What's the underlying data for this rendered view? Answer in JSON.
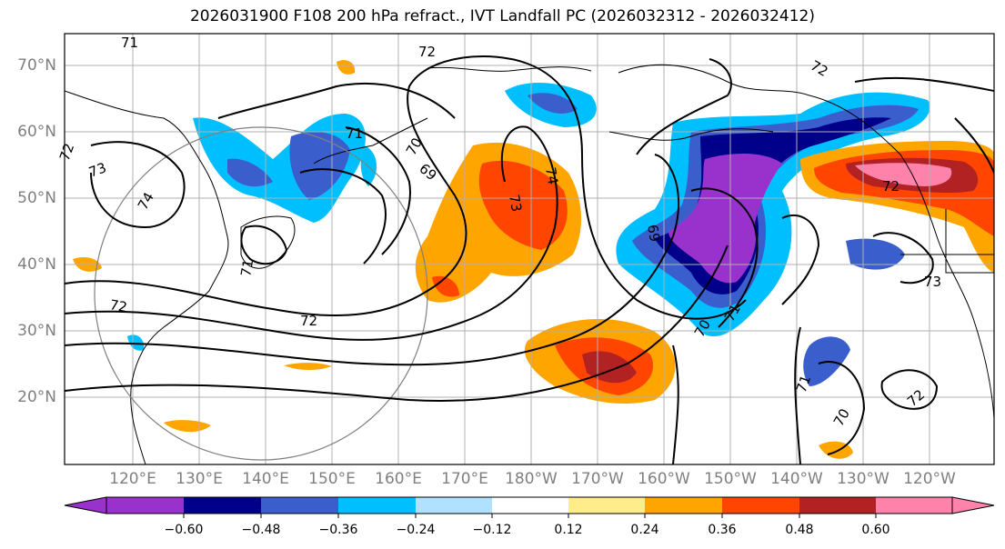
{
  "title": "2026031900 F108 200 hPa refract., IVT Landfall PC (2026032312 - 2026032412)",
  "lat_labels": [
    "70°N",
    "60°N",
    "50°N",
    "40°N",
    "30°N",
    "20°N"
  ],
  "lon_labels": [
    "120°E",
    "130°E",
    "140°E",
    "150°E",
    "160°E",
    "170°E",
    "180°W",
    "170°W",
    "160°W",
    "150°W",
    "140°W",
    "130°W",
    "120°W"
  ],
  "contour_labels": [
    "71",
    "72",
    "72",
    "73",
    "74",
    "71",
    "70",
    "69",
    "73",
    "74",
    "72",
    "71",
    "72",
    "72",
    "69",
    "70",
    "71",
    "73",
    "72",
    "71",
    "70",
    "72"
  ],
  "colorbar": {
    "ticks": [
      "−0.60",
      "−0.48",
      "−0.36",
      "−0.24",
      "−0.12",
      "0.12",
      "0.24",
      "0.36",
      "0.48",
      "0.60"
    ],
    "colors": [
      "#9932cc",
      "#00008b",
      "#3a5fcd",
      "#00bfff",
      "#b0e2ff",
      "#ffffff",
      "#ffec8b",
      "#ffa500",
      "#ff4500",
      "#b22222",
      "#ff82ab"
    ]
  }
}
